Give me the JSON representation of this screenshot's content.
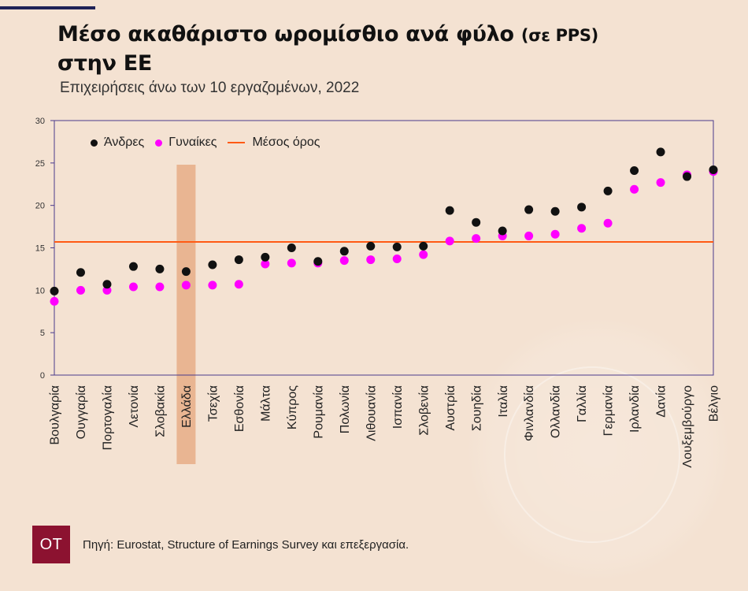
{
  "header": {
    "title_main": "Μέσο ακαθάριστο ωρομίσθιο ανά φύλο",
    "title_unit": "(σε PPS)",
    "title_line2": "στην ΕΕ",
    "subtitle": "Επιχειρήσεις άνω των 10 εργαζομένων, 2022"
  },
  "legend": {
    "men": "Άνδρες",
    "women": "Γυναίκες",
    "avg": "Μέσος όρος"
  },
  "colors": {
    "background": "#f4e2d2",
    "men": "#111111",
    "women": "#ff00ff",
    "average": "#ff5a14",
    "highlight": "#e6a67c",
    "frame": "#4a3a8c",
    "logo": "#8c1230"
  },
  "chart_data": {
    "type": "scatter",
    "categories": [
      "Βουλγαρία",
      "Ουγγαρία",
      "Πορτογαλία",
      "Λετονία",
      "Σλοβακία",
      "Ελλάδα",
      "Τσεχία",
      "Εσθονία",
      "Μάλτα",
      "Κύπρος",
      "Ρουμανία",
      "Πολωνία",
      "Λιθουανία",
      "Ισπανία",
      "Σλοβενία",
      "Αυστρία",
      "Σουηδία",
      "Ιταλία",
      "Φινλανδία",
      "Ολλανδία",
      "Γαλλία",
      "Γερμανία",
      "Ιρλανδία",
      "Δανία",
      "Λουξεμβούργο",
      "Βέλγιο"
    ],
    "series": [
      {
        "name": "Άνδρες",
        "values": [
          9.9,
          12.1,
          10.7,
          12.8,
          12.5,
          12.2,
          13.0,
          13.6,
          13.9,
          15.0,
          13.4,
          14.6,
          15.2,
          15.1,
          15.2,
          19.4,
          18.0,
          17.0,
          19.5,
          19.3,
          19.8,
          21.7,
          24.1,
          26.3,
          23.4,
          24.2
        ]
      },
      {
        "name": "Γυναίκες",
        "values": [
          8.7,
          10.0,
          10.0,
          10.4,
          10.4,
          10.6,
          10.6,
          10.7,
          13.1,
          13.2,
          13.2,
          13.5,
          13.6,
          13.7,
          14.2,
          15.8,
          16.1,
          16.4,
          16.4,
          16.6,
          17.3,
          17.9,
          21.9,
          22.7,
          23.6,
          24.0
        ]
      }
    ],
    "average": 15.7,
    "highlight_category": "Ελλάδα",
    "y_ticks": [
      0,
      5,
      10,
      15,
      20,
      25,
      30
    ],
    "ylim": [
      0,
      30
    ],
    "xlabel": "",
    "ylabel": "",
    "legend_position": "top-left",
    "grid": false
  },
  "footer": {
    "logo_text": "ΟΤ",
    "source": "Πηγή: Eurostat, Structure of Earnings Survey και επεξεργασία."
  }
}
